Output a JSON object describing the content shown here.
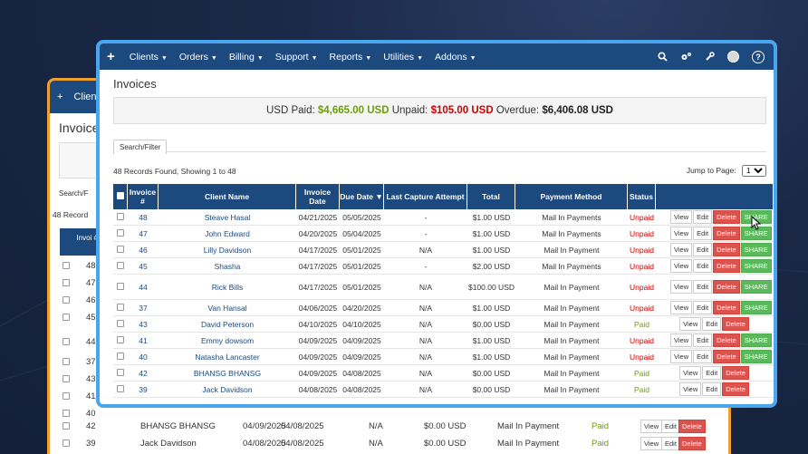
{
  "nav": {
    "plus": "+",
    "items": [
      "Clients",
      "Orders",
      "Billing",
      "Support",
      "Reports",
      "Utilities",
      "Addons"
    ]
  },
  "page_title": "Invoices",
  "summary": {
    "paid_label": "USD Paid:",
    "paid_value": "$4,665.00 USD",
    "unpaid_label": "Unpaid:",
    "unpaid_value": "$105.00 USD",
    "overdue_label": "Overdue:",
    "overdue_value": "$6,406.08 USD"
  },
  "search_tab": "Search/Filter",
  "records_text": "48 Records Found, Showing 1 to 48",
  "jump_label": "Jump to Page:",
  "jump_value": "1",
  "columns": [
    "Invoice #",
    "Client Name",
    "Invoice Date",
    "Due Date ▼",
    "Last Capture Attempt",
    "Total",
    "Payment Method",
    "Status",
    ""
  ],
  "buttons": {
    "view": "View",
    "edit": "Edit",
    "delete": "Delete",
    "share": "SHARE"
  },
  "rows": [
    {
      "id": "48",
      "client": "Steave Hasal",
      "inv_date": "04/21/2025",
      "due": "05/05/2025",
      "capture": "-",
      "total": "$1.00 USD",
      "method": "Mail In Payments",
      "status": "Unpaid",
      "share": true
    },
    {
      "id": "47",
      "client": "John Edward",
      "inv_date": "04/20/2025",
      "due": "05/04/2025",
      "capture": "-",
      "total": "$1.00 USD",
      "method": "Mail In Payments",
      "status": "Unpaid",
      "share": true
    },
    {
      "id": "46",
      "client": "Lilly Davidson",
      "inv_date": "04/17/2025",
      "due": "05/01/2025",
      "capture": "N/A",
      "total": "$1.00 USD",
      "method": "Mail In Payment",
      "status": "Unpaid",
      "share": true
    },
    {
      "id": "45",
      "client": "Shasha",
      "inv_date": "04/17/2025",
      "due": "05/01/2025",
      "capture": "-",
      "total": "$2.00 USD",
      "method": "Mail In Payments",
      "status": "Unpaid",
      "share": true
    },
    {
      "id": "44",
      "client": "Rick Bills",
      "inv_date": "04/17/2025",
      "due": "05/01/2025",
      "capture": "N/A",
      "total": "$100.00 USD",
      "method": "Mail In Payment",
      "status": "Unpaid",
      "share": true,
      "tall": true
    },
    {
      "id": "37",
      "client": "Van Hansal",
      "inv_date": "04/06/2025",
      "due": "04/20/2025",
      "capture": "N/A",
      "total": "$1.00 USD",
      "method": "Mail In Payment",
      "status": "Unpaid",
      "share": true
    },
    {
      "id": "43",
      "client": "David Peterson",
      "inv_date": "04/10/2025",
      "due": "04/10/2025",
      "capture": "N/A",
      "total": "$0.00 USD",
      "method": "Mail In Payment",
      "status": "Paid",
      "share": false
    },
    {
      "id": "41",
      "client": "Emmy dowsom",
      "inv_date": "04/09/2025",
      "due": "04/09/2025",
      "capture": "N/A",
      "total": "$1.00 USD",
      "method": "Mail In Payment",
      "status": "Unpaid",
      "share": true
    },
    {
      "id": "40",
      "client": "Natasha Lancaster",
      "inv_date": "04/09/2025",
      "due": "04/09/2025",
      "capture": "N/A",
      "total": "$1.00 USD",
      "method": "Mail In Payment",
      "status": "Unpaid",
      "share": true
    },
    {
      "id": "42",
      "client": "BHANSG BHANSG",
      "inv_date": "04/09/2025",
      "due": "04/08/2025",
      "capture": "N/A",
      "total": "$0.00 USD",
      "method": "Mail In Payment",
      "status": "Paid",
      "share": false
    },
    {
      "id": "39",
      "client": "Jack Davidson",
      "inv_date": "04/08/2025",
      "due": "04/08/2025",
      "capture": "N/A",
      "total": "$0.00 USD",
      "method": "Mail In Payment",
      "status": "Paid",
      "share": false
    }
  ],
  "back_window": {
    "title": "Invoice",
    "nav_item": "Clien",
    "search": "Search/F",
    "records": "48 Record",
    "header_frag": "Invoi #",
    "ids": [
      "48",
      "47",
      "46",
      "45",
      "44",
      "37",
      "43",
      "41",
      "40"
    ],
    "bottom_rows": [
      {
        "id": "42",
        "client": "BHANSG BHANSG",
        "inv_date": "04/09/2025",
        "due": "04/08/2025",
        "capture": "N/A",
        "total": "$0.00 USD",
        "method": "Mail In Payment",
        "status": "Paid"
      },
      {
        "id": "39",
        "client": "Jack Davidson",
        "inv_date": "04/08/2025",
        "due": "04/08/2025",
        "capture": "N/A",
        "total": "$0.00 USD",
        "method": "Mail In Payment",
        "status": "Paid"
      }
    ]
  },
  "colors": {
    "nav": "#1d4a7e",
    "paid": "#6e9c10",
    "unpaid": "#cc0000",
    "share": "#5cb85c",
    "delete": "#d9534f",
    "front_border": "#49a6ee",
    "back_border": "#f0a030"
  }
}
